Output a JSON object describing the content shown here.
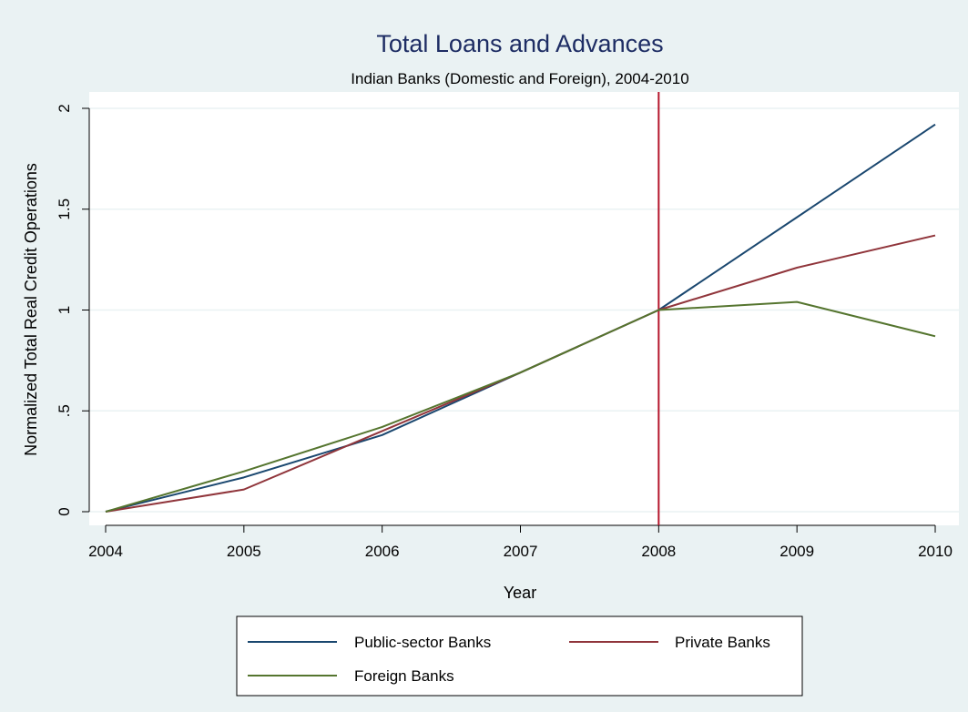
{
  "chart_data": {
    "type": "line",
    "title": "Total Loans and Advances",
    "subtitle": "Indian Banks (Domestic and Foreign), 2004-2010",
    "xlabel": "Year",
    "ylabel": "Normalized Total Real Credit Operations",
    "x": [
      2004,
      2005,
      2006,
      2007,
      2008,
      2009,
      2010
    ],
    "xlim": [
      2004,
      2010
    ],
    "ylim": [
      0,
      2
    ],
    "x_ticks": [
      2004,
      2005,
      2006,
      2007,
      2008,
      2009,
      2010
    ],
    "x_tick_labels": [
      "2004",
      "2005",
      "2006",
      "2007",
      "2008",
      "2009",
      "2010"
    ],
    "y_ticks": [
      0,
      0.5,
      1,
      1.5,
      2
    ],
    "y_tick_labels": [
      "0",
      ".5",
      "1",
      "1.5",
      "2"
    ],
    "grid": true,
    "reference_line": {
      "x": 2008,
      "color": "#b5162c"
    },
    "legend_position": "bottom",
    "series": [
      {
        "name": "Public-sector Banks",
        "color": "#1a476f",
        "values": [
          0,
          0.17,
          0.38,
          0.69,
          1.0,
          1.46,
          1.92
        ]
      },
      {
        "name": "Private Banks",
        "color": "#90353b",
        "values": [
          0,
          0.11,
          0.4,
          0.69,
          1.0,
          1.21,
          1.37
        ]
      },
      {
        "name": "Foreign Banks",
        "color": "#55752f",
        "values": [
          0,
          0.2,
          0.42,
          0.69,
          1.0,
          1.04,
          0.87
        ]
      }
    ]
  },
  "colors": {
    "background": "#eaf2f3",
    "plot_background": "#ffffff",
    "gridline": "#eaf2f3",
    "title": "#1e2d64",
    "text": "#000000"
  }
}
